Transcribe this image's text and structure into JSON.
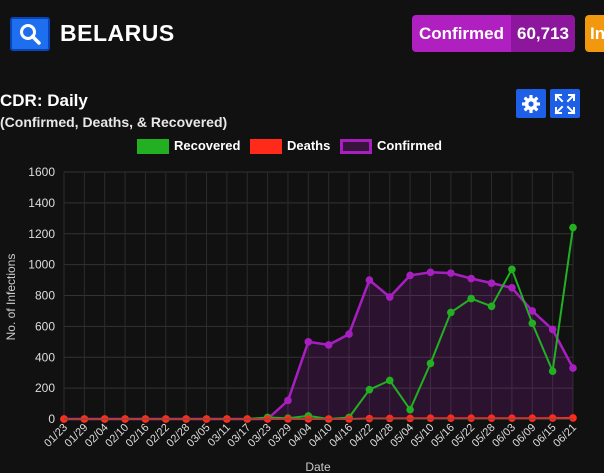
{
  "header": {
    "country": "BELARUS",
    "search_icon": "search-icon",
    "confirmed_label": "Confirmed",
    "confirmed_value": "60,713",
    "next_label": "In"
  },
  "colors": {
    "recovered": "#22b022",
    "deaths": "#ff2a1a",
    "confirmed": "#a81fc0",
    "button": "#1e5fe8"
  },
  "chart_controls": {
    "settings_icon": "gear-icon",
    "expand_icon": "expand-icon"
  },
  "chart_data": {
    "type": "line",
    "title": "CDR: Daily",
    "subtitle": "(Confirmed, Deaths, & Recovered)",
    "xlabel": "Date",
    "ylabel": "No. of Infections",
    "ylim": [
      0,
      1600
    ],
    "yticks": [
      0,
      200,
      400,
      600,
      800,
      1000,
      1200,
      1400,
      1600
    ],
    "grid": true,
    "legend_position": "top-center",
    "x": [
      "01/23",
      "01/29",
      "02/04",
      "02/10",
      "02/16",
      "02/22",
      "02/28",
      "03/05",
      "03/11",
      "03/17",
      "03/23",
      "03/29",
      "04/04",
      "04/10",
      "04/16",
      "04/22",
      "04/28",
      "05/04",
      "05/10",
      "05/16",
      "05/22",
      "05/28",
      "06/03",
      "06/09",
      "06/15",
      "06/21"
    ],
    "series": [
      {
        "name": "Recovered",
        "values": [
          0,
          0,
          0,
          0,
          0,
          0,
          0,
          0,
          0,
          0,
          10,
          5,
          20,
          0,
          10,
          190,
          250,
          60,
          360,
          690,
          780,
          730,
          970,
          620,
          310,
          1240
        ],
        "marker_values": [
          0,
          0,
          0,
          0,
          0,
          0,
          0,
          0,
          0,
          0,
          10,
          5,
          20,
          0,
          10,
          190,
          250,
          60,
          360,
          690,
          780,
          730,
          970,
          620,
          310,
          1240
        ]
      },
      {
        "name": "Deaths",
        "values": [
          0,
          0,
          0,
          0,
          0,
          0,
          0,
          0,
          0,
          0,
          0,
          0,
          0,
          0,
          0,
          3,
          4,
          4,
          5,
          5,
          5,
          5,
          5,
          5,
          6,
          7
        ],
        "marker_values": [
          0,
          0,
          0,
          0,
          0,
          0,
          0,
          0,
          0,
          0,
          0,
          0,
          0,
          0,
          0,
          3,
          4,
          4,
          5,
          5,
          5,
          5,
          5,
          5,
          6,
          7
        ]
      },
      {
        "name": "Confirmed",
        "values": [
          0,
          0,
          0,
          0,
          0,
          0,
          0,
          0,
          0,
          0,
          0,
          120,
          500,
          480,
          550,
          900,
          790,
          930,
          950,
          945,
          910,
          880,
          850,
          700,
          580,
          330
        ],
        "marker_values": [
          0,
          0,
          0,
          0,
          0,
          0,
          0,
          0,
          0,
          0,
          0,
          120,
          500,
          480,
          550,
          900,
          790,
          930,
          950,
          945,
          910,
          880,
          850,
          700,
          580,
          330
        ]
      }
    ]
  }
}
